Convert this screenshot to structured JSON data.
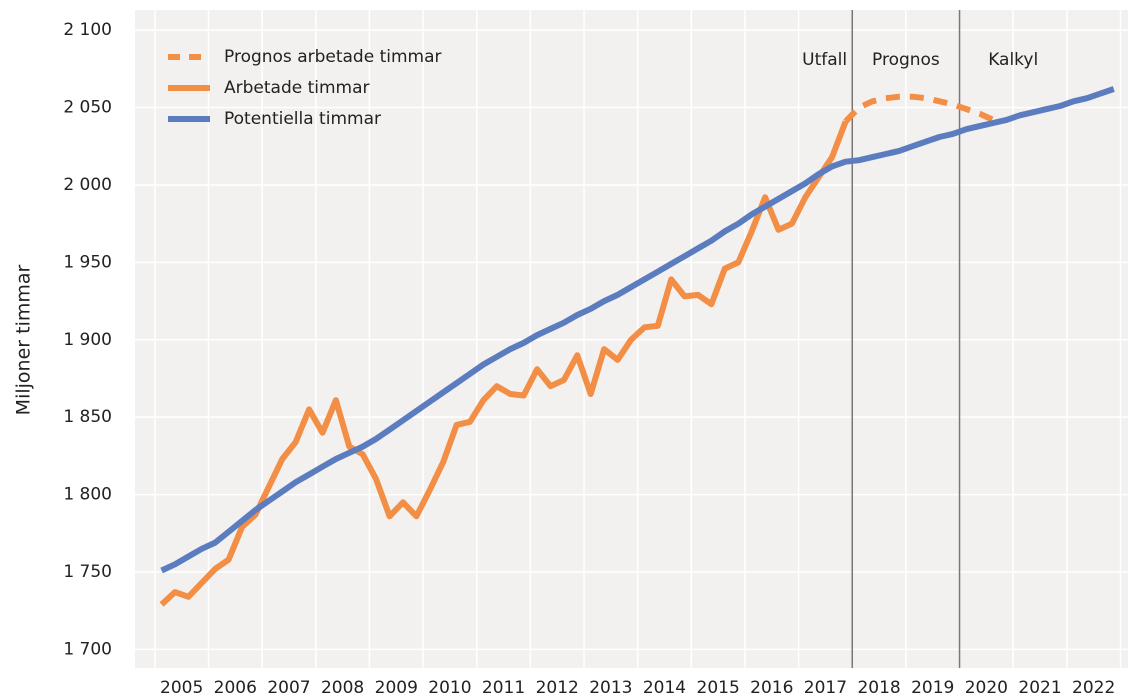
{
  "chart_data": {
    "type": "line",
    "y_label": "Miljoner timmar",
    "x": [
      2005.125,
      2005.375,
      2005.625,
      2005.875,
      2006.125,
      2006.375,
      2006.625,
      2006.875,
      2007.125,
      2007.375,
      2007.625,
      2007.875,
      2008.125,
      2008.375,
      2008.625,
      2008.875,
      2009.125,
      2009.375,
      2009.625,
      2009.875,
      2010.125,
      2010.375,
      2010.625,
      2010.875,
      2011.125,
      2011.375,
      2011.625,
      2011.875,
      2012.125,
      2012.375,
      2012.625,
      2012.875,
      2013.125,
      2013.375,
      2013.625,
      2013.875,
      2014.125,
      2014.375,
      2014.625,
      2014.875,
      2015.125,
      2015.375,
      2015.625,
      2015.875,
      2016.125,
      2016.375,
      2016.625,
      2016.875,
      2017.125,
      2017.375,
      2017.625,
      2017.875,
      2018.125,
      2018.375,
      2018.625,
      2018.875,
      2019.125,
      2019.375,
      2019.625,
      2019.875,
      2020.125,
      2020.375,
      2020.625,
      2020.875,
      2021.125,
      2021.375,
      2021.625,
      2021.875,
      2022.125,
      2022.375,
      2022.625,
      2022.875
    ],
    "series": [
      {
        "name": "Prognos arbetade timmar",
        "color": "#f28e45",
        "dashed": true,
        "values": [
          null,
          null,
          null,
          null,
          null,
          null,
          null,
          null,
          null,
          null,
          null,
          null,
          null,
          null,
          null,
          null,
          null,
          null,
          null,
          null,
          null,
          null,
          null,
          null,
          null,
          null,
          null,
          null,
          null,
          null,
          null,
          null,
          null,
          null,
          null,
          null,
          null,
          null,
          null,
          null,
          null,
          null,
          null,
          null,
          null,
          null,
          null,
          null,
          null,
          null,
          null,
          2041,
          2050,
          2054,
          2056,
          2057,
          2057,
          2056,
          2054,
          2052,
          2049,
          2046,
          2042,
          null,
          null,
          null,
          null,
          null,
          null,
          null,
          null,
          null
        ]
      },
      {
        "name": "Arbetade timmar",
        "color": "#f28e45",
        "dashed": false,
        "values": [
          1729,
          1737,
          1734,
          1743,
          1752,
          1758,
          1779,
          1787,
          1805,
          1823,
          1834,
          1855,
          1840,
          1861,
          1831,
          1826,
          1810,
          1786,
          1795,
          1786,
          1803,
          1821,
          1845,
          1847,
          1861,
          1870,
          1865,
          1864,
          1881,
          1870,
          1874,
          1890,
          1865,
          1894,
          1887,
          1900,
          1908,
          1909,
          1939,
          1928,
          1929,
          1923,
          1946,
          1950,
          1970,
          1992,
          1971,
          1975,
          1992,
          2005,
          2018,
          2041,
          null,
          null,
          null,
          null,
          null,
          null,
          null,
          null,
          null,
          null,
          null,
          null,
          null,
          null,
          null,
          null,
          null,
          null,
          null,
          null
        ]
      },
      {
        "name": "Potentiella timmar",
        "color": "#5b7dbf",
        "dashed": false,
        "values": [
          1751,
          1755,
          1760,
          1765,
          1769,
          1776,
          1783,
          1790,
          1796,
          1802,
          1808,
          1813,
          1818,
          1823,
          1827,
          1831,
          1836,
          1842,
          1848,
          1854,
          1860,
          1866,
          1872,
          1878,
          1884,
          1889,
          1894,
          1898,
          1903,
          1907,
          1911,
          1916,
          1920,
          1925,
          1929,
          1934,
          1939,
          1944,
          1949,
          1954,
          1959,
          1964,
          1970,
          1975,
          1981,
          1986,
          1991,
          1996,
          2001,
          2007,
          2012,
          2015,
          2016,
          2018,
          2020,
          2022,
          2025,
          2028,
          2031,
          2033,
          2036,
          2038,
          2040,
          2042,
          2045,
          2047,
          2049,
          2051,
          2054,
          2056,
          2059,
          2062
        ]
      }
    ],
    "xlim": [
      2004.63,
      2023.14
    ],
    "xticks": [
      {
        "value": 2005.5,
        "label": "2005"
      },
      {
        "value": 2006.5,
        "label": "2006"
      },
      {
        "value": 2007.5,
        "label": "2007"
      },
      {
        "value": 2008.5,
        "label": "2008"
      },
      {
        "value": 2009.5,
        "label": "2009"
      },
      {
        "value": 2010.5,
        "label": "2010"
      },
      {
        "value": 2011.5,
        "label": "2011"
      },
      {
        "value": 2012.5,
        "label": "2012"
      },
      {
        "value": 2013.5,
        "label": "2013"
      },
      {
        "value": 2014.5,
        "label": "2014"
      },
      {
        "value": 2015.5,
        "label": "2015"
      },
      {
        "value": 2016.5,
        "label": "2016"
      },
      {
        "value": 2017.5,
        "label": "2017"
      },
      {
        "value": 2018.5,
        "label": "2018"
      },
      {
        "value": 2019.5,
        "label": "2019"
      },
      {
        "value": 2020.5,
        "label": "2020"
      },
      {
        "value": 2021.5,
        "label": "2021"
      },
      {
        "value": 2022.5,
        "label": "2022"
      }
    ],
    "ylim": [
      1688,
      2113
    ],
    "yticks": [
      {
        "value": 1700,
        "label": "1 700"
      },
      {
        "value": 1750,
        "label": "1 750"
      },
      {
        "value": 1800,
        "label": "1 800"
      },
      {
        "value": 1850,
        "label": "1 850"
      },
      {
        "value": 1900,
        "label": "1 900"
      },
      {
        "value": 1950,
        "label": "1 950"
      },
      {
        "value": 2000,
        "label": "2 000"
      },
      {
        "value": 2050,
        "label": "2 050"
      },
      {
        "value": 2100,
        "label": "2 100"
      }
    ],
    "grid": true,
    "legend": "top-left",
    "dividers": [
      2018,
      2020
    ],
    "periods": [
      "Utfall",
      "Prognos",
      "Kalkyl"
    ]
  }
}
